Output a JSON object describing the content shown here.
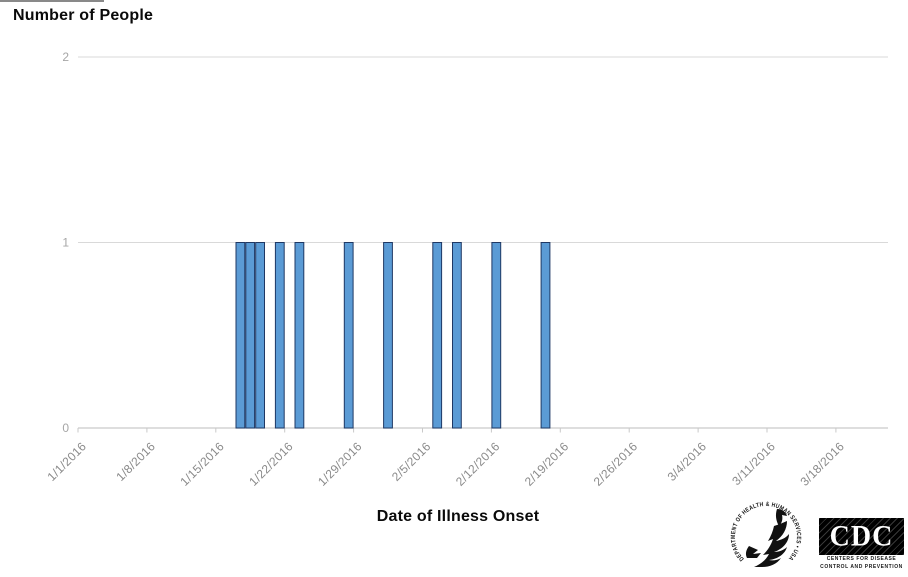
{
  "chart_data": {
    "type": "bar",
    "title": "Number of People",
    "xlabel": "Date of Illness Onset",
    "ylabel": "Number of People",
    "x_start": "1/1/2016",
    "bin_days": 1,
    "x_tick_labels": [
      "1/1/2016",
      "1/8/2016",
      "1/15/2016",
      "1/22/2016",
      "1/29/2016",
      "2/5/2016",
      "2/12/2016",
      "2/19/2016",
      "2/26/2016",
      "3/4/2016",
      "3/11/2016",
      "3/18/2016"
    ],
    "y_ticks": [
      0,
      1,
      2
    ],
    "ylim": [
      0,
      2
    ],
    "grid": true,
    "legend": false,
    "bars": [
      {
        "date": "1/17/2016",
        "value": 1
      },
      {
        "date": "1/18/2016",
        "value": 1
      },
      {
        "date": "1/19/2016",
        "value": 1
      },
      {
        "date": "1/21/2016",
        "value": 1
      },
      {
        "date": "1/23/2016",
        "value": 1
      },
      {
        "date": "1/28/2016",
        "value": 1
      },
      {
        "date": "2/1/2016",
        "value": 1
      },
      {
        "date": "2/6/2016",
        "value": 1
      },
      {
        "date": "2/8/2016",
        "value": 1
      },
      {
        "date": "2/12/2016",
        "value": 1
      },
      {
        "date": "2/17/2016",
        "value": 1
      }
    ],
    "colors": {
      "bar_fill": "#5b9bd5",
      "bar_stroke": "#1f3864",
      "gridline": "#d9d9d9",
      "axis": "#c9c9c9",
      "tick_label": "#8a8a8a",
      "y_label": "#a6a6a6"
    }
  },
  "footer": {
    "hhs_ring_text": "DEPARTMENT OF HEALTH & HUMAN SERVICES • USA",
    "cdc_acronym": "CDC",
    "cdc_tagline_line1": "CENTERS FOR DISEASE",
    "cdc_tagline_line2": "CONTROL AND PREVENTION"
  }
}
